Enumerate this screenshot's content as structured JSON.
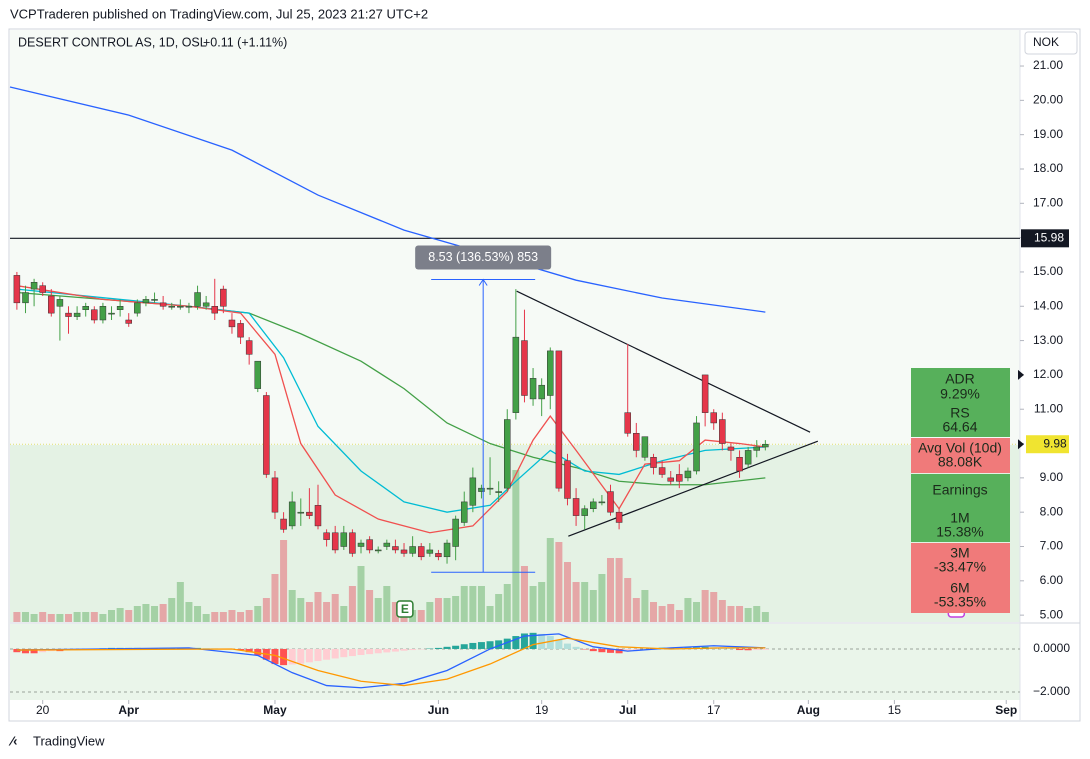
{
  "header": {
    "published": "VCPTraderen published on TradingView.com, Jul 25, 2023 21:27 UTC+2",
    "symbol": "DESERT CONTROL AS, 1D, OSL",
    "change": "+0.11 (+1.11%)",
    "currency": "NOK"
  },
  "footer": {
    "brand": "TradingView"
  },
  "stats": [
    {
      "label": "ADR",
      "value": "9.29%"
    },
    {
      "label": "RS",
      "value": "64.64"
    },
    {
      "label": "Avg Vol (10d)",
      "value": "88.08K"
    },
    {
      "label": "Earnings"
    },
    {
      "label": "1M",
      "value": "15.38%"
    },
    {
      "label": "3M",
      "value": "-33.47%"
    },
    {
      "label": "6M",
      "value": "-53.35%"
    }
  ],
  "chart_data": {
    "type": "candlestick",
    "up_color": "#43a047",
    "down_color": "#e5364a",
    "xlim": [
      -0.8,
      116.6
    ],
    "ylim": [
      4.8,
      22.05
    ],
    "xticks": [
      {
        "value": 3,
        "label": "20"
      },
      {
        "value": 13,
        "label": "Apr"
      },
      {
        "value": 30,
        "label": "May"
      },
      {
        "value": 49,
        "label": "Jun"
      },
      {
        "value": 61,
        "label": "19"
      },
      {
        "value": 71,
        "label": "Jul"
      },
      {
        "value": 81,
        "label": "17"
      },
      {
        "value": 92,
        "label": "Aug"
      },
      {
        "value": 102,
        "label": "15"
      },
      {
        "value": 115,
        "label": "Sep"
      }
    ],
    "yticks": [
      {
        "value": 5,
        "label": "5.00"
      },
      {
        "value": 6,
        "label": "6.00"
      },
      {
        "value": 7,
        "label": "7.00"
      },
      {
        "value": 8,
        "label": "8.00"
      },
      {
        "value": 9,
        "label": "9.00"
      },
      {
        "value": 10,
        "label": "10.00"
      },
      {
        "value": 11,
        "label": "11.00"
      },
      {
        "value": 12,
        "label": "12.00"
      },
      {
        "value": 13,
        "label": "13.00"
      },
      {
        "value": 14,
        "label": "14.00"
      },
      {
        "value": 15,
        "label": "15.00"
      },
      {
        "value": 16,
        "label": "16.00"
      },
      {
        "value": 17,
        "label": "17.00"
      },
      {
        "value": 18,
        "label": "18.00"
      },
      {
        "value": 19,
        "label": "19.00"
      },
      {
        "value": 20,
        "label": "20.00"
      },
      {
        "value": 21,
        "label": "21.00"
      }
    ],
    "x": [
      0,
      1,
      2,
      3,
      4,
      5,
      6,
      7,
      8,
      9,
      10,
      11,
      12,
      13,
      14,
      15,
      16,
      17,
      18,
      19,
      20,
      21,
      22,
      23,
      24,
      25,
      26,
      27,
      28,
      29,
      30,
      31,
      32,
      33,
      34,
      35,
      36,
      37,
      38,
      39,
      40,
      41,
      42,
      43,
      44,
      45,
      46,
      47,
      48,
      49,
      50,
      51,
      52,
      53,
      54,
      55,
      56,
      57,
      58,
      59,
      60,
      61,
      62,
      63,
      64,
      65,
      66,
      67,
      68,
      69,
      70,
      71,
      72,
      73,
      74,
      75,
      76,
      77,
      78,
      79,
      80,
      81,
      82,
      83,
      84,
      85,
      86,
      87
    ],
    "candles": [
      [
        14.9,
        15.0,
        13.9,
        14.1
      ],
      [
        14.1,
        14.6,
        13.8,
        14.4
      ],
      [
        14.5,
        14.8,
        14.0,
        14.7
      ],
      [
        14.6,
        14.7,
        14.3,
        14.4
      ],
      [
        14.3,
        14.5,
        13.7,
        13.8
      ],
      [
        14.0,
        14.3,
        13.0,
        14.2
      ],
      [
        13.8,
        14.0,
        13.2,
        13.7
      ],
      [
        13.7,
        14.0,
        13.6,
        13.8
      ],
      [
        13.9,
        14.1,
        13.7,
        14.0
      ],
      [
        13.9,
        14.0,
        13.5,
        13.6
      ],
      [
        13.6,
        14.1,
        13.5,
        14.0
      ],
      [
        13.8,
        14.0,
        13.6,
        13.8
      ],
      [
        13.9,
        14.2,
        13.7,
        14.0
      ],
      [
        13.6,
        13.8,
        13.4,
        13.5
      ],
      [
        13.8,
        14.2,
        13.7,
        14.1
      ],
      [
        14.1,
        14.3,
        14.0,
        14.2
      ],
      [
        14.2,
        14.4,
        14.1,
        14.2
      ],
      [
        14.1,
        14.3,
        13.9,
        14.0
      ],
      [
        14.0,
        14.1,
        13.9,
        14.0
      ],
      [
        14.0,
        14.2,
        13.9,
        14.0
      ],
      [
        14.0,
        14.1,
        13.8,
        14.0
      ],
      [
        14.0,
        14.6,
        13.9,
        14.4
      ],
      [
        14.0,
        14.3,
        13.9,
        14.1
      ],
      [
        14.0,
        14.8,
        13.6,
        13.8
      ],
      [
        14.5,
        14.6,
        13.8,
        14.0
      ],
      [
        13.6,
        13.8,
        13.2,
        13.4
      ],
      [
        13.5,
        13.6,
        12.9,
        13.1
      ],
      [
        13.0,
        13.1,
        12.3,
        12.6
      ],
      [
        11.6,
        12.4,
        11.5,
        12.4
      ],
      [
        11.4,
        11.5,
        9.0,
        9.1
      ],
      [
        9.0,
        9.2,
        7.8,
        8.0
      ],
      [
        7.8,
        8.0,
        7.4,
        7.5
      ],
      [
        7.6,
        8.6,
        7.5,
        8.3
      ],
      [
        8.0,
        8.4,
        7.6,
        8.0
      ],
      [
        8.0,
        8.7,
        7.8,
        7.9
      ],
      [
        8.2,
        8.8,
        7.5,
        7.6
      ],
      [
        7.4,
        7.5,
        7.0,
        7.2
      ],
      [
        7.4,
        7.6,
        6.8,
        6.9
      ],
      [
        7.0,
        7.6,
        6.9,
        7.4
      ],
      [
        7.4,
        7.5,
        6.7,
        6.8
      ],
      [
        7.0,
        7.2,
        6.8,
        7.1
      ],
      [
        7.2,
        7.3,
        6.8,
        6.9
      ],
      [
        6.9,
        7.0,
        6.8,
        6.9
      ],
      [
        7.0,
        7.2,
        6.9,
        7.1
      ],
      [
        7.0,
        7.2,
        6.8,
        6.9
      ],
      [
        6.9,
        7.1,
        6.7,
        6.8
      ],
      [
        6.8,
        7.3,
        6.7,
        7.0
      ],
      [
        7.0,
        7.1,
        6.6,
        6.7
      ],
      [
        6.8,
        7.1,
        6.7,
        6.9
      ],
      [
        6.8,
        6.9,
        6.6,
        6.7
      ],
      [
        6.7,
        7.2,
        6.5,
        7.1
      ],
      [
        7.0,
        7.9,
        6.6,
        7.8
      ],
      [
        7.7,
        8.6,
        7.6,
        8.3
      ],
      [
        8.2,
        9.3,
        8.0,
        9.0
      ],
      [
        8.6,
        8.8,
        8.4,
        8.7
      ],
      [
        8.7,
        9.6,
        8.5,
        8.7
      ],
      [
        8.6,
        8.9,
        8.3,
        8.6
      ],
      [
        8.7,
        11.0,
        8.6,
        10.7
      ],
      [
        10.9,
        14.5,
        10.7,
        13.1
      ],
      [
        13.0,
        13.9,
        11.2,
        11.4
      ],
      [
        11.3,
        12.2,
        11.1,
        11.9
      ],
      [
        11.3,
        11.9,
        10.8,
        11.7
      ],
      [
        11.4,
        12.8,
        11.0,
        12.7
      ],
      [
        12.7,
        12.7,
        8.6,
        8.7
      ],
      [
        9.5,
        9.7,
        8.2,
        8.4
      ],
      [
        8.4,
        8.7,
        7.6,
        7.9
      ],
      [
        7.9,
        8.2,
        7.5,
        8.1
      ],
      [
        8.1,
        8.4,
        8.0,
        8.3
      ],
      [
        8.3,
        8.5,
        8.2,
        8.3
      ],
      [
        8.6,
        8.8,
        7.9,
        8.0
      ],
      [
        8.0,
        8.1,
        7.5,
        7.7
      ],
      [
        10.9,
        12.9,
        10.2,
        10.3
      ],
      [
        10.3,
        10.6,
        9.6,
        9.8
      ],
      [
        9.6,
        10.2,
        9.5,
        10.2
      ],
      [
        9.6,
        9.7,
        9.1,
        9.3
      ],
      [
        9.3,
        9.5,
        9.0,
        9.1
      ],
      [
        9.0,
        9.2,
        8.8,
        8.9
      ],
      [
        9.1,
        9.4,
        8.7,
        8.9
      ],
      [
        9.0,
        9.3,
        8.9,
        9.2
      ],
      [
        9.2,
        10.8,
        9.1,
        10.6
      ],
      [
        12.0,
        12.0,
        10.5,
        10.9
      ],
      [
        10.9,
        11.0,
        10.4,
        10.6
      ],
      [
        10.7,
        10.9,
        9.8,
        10.0
      ],
      [
        9.9,
        10.0,
        9.5,
        9.8
      ],
      [
        9.6,
        9.8,
        9.0,
        9.2
      ],
      [
        9.4,
        9.9,
        9.3,
        9.8
      ],
      [
        9.8,
        10.1,
        9.6,
        9.9
      ],
      [
        9.9,
        10.1,
        9.8,
        9.98
      ]
    ],
    "moving_averages": [
      {
        "color": "#2962ff",
        "x": [
          -0.8,
          13,
          25,
          35,
          45,
          55,
          65,
          75,
          87
        ],
        "values": [
          20.39,
          19.57,
          18.55,
          17.24,
          16.22,
          15.5,
          14.76,
          14.24,
          13.83
        ]
      },
      {
        "color": "#43a047",
        "x": [
          0,
          10,
          20,
          27,
          33,
          40,
          45,
          50,
          55,
          60,
          65,
          70,
          75,
          80,
          87
        ],
        "values": [
          14.4,
          14.2,
          14.0,
          13.8,
          13.2,
          12.4,
          11.6,
          10.6,
          10.0,
          9.6,
          9.3,
          8.9,
          8.8,
          8.8,
          9.0
        ]
      },
      {
        "color": "#00bcd4",
        "x": [
          0,
          20,
          27,
          31,
          35,
          40,
          45,
          50,
          55,
          58,
          62,
          66,
          70,
          75,
          80,
          87
        ],
        "values": [
          14.5,
          14.0,
          13.8,
          12.5,
          10.5,
          9.2,
          8.3,
          8.0,
          8.2,
          8.9,
          9.8,
          9.2,
          9.1,
          9.5,
          9.8,
          9.9
        ]
      },
      {
        "color": "#f0504f",
        "x": [
          0,
          10,
          20,
          26,
          30,
          33,
          37,
          42,
          48,
          53,
          57,
          60,
          62,
          65,
          70,
          73,
          77,
          80,
          84,
          87
        ],
        "values": [
          14.6,
          14.2,
          14.0,
          13.8,
          12.6,
          10.0,
          8.5,
          7.8,
          7.4,
          7.6,
          8.6,
          10.1,
          10.8,
          9.8,
          8.1,
          9.4,
          9.5,
          10.1,
          10.0,
          9.9
        ]
      }
    ],
    "hline": 15.98,
    "last_price": 9.98,
    "trendlines": [
      {
        "x": [
          58.1,
          92.2
        ],
        "values": [
          14.44,
          10.33
        ]
      },
      {
        "x": [
          64.1,
          93.1
        ],
        "values": [
          7.3,
          10.07
        ]
      }
    ],
    "measurement": {
      "x": 54.2,
      "from": 6.25,
      "to": 14.78,
      "label": "8.53 (136.53%) 853"
    },
    "events": [
      {
        "x": 45.1,
        "label": "E"
      },
      {
        "x": 109.2,
        "label": "E"
      }
    ],
    "volume": {
      "vlim": [
        0,
        600
      ],
      "values": [
        25,
        25,
        20,
        25,
        20,
        20,
        20,
        25,
        25,
        25,
        20,
        30,
        35,
        30,
        40,
        45,
        40,
        45,
        60,
        100,
        50,
        40,
        20,
        25,
        25,
        30,
        25,
        30,
        40,
        60,
        120,
        205,
        80,
        60,
        50,
        75,
        50,
        70,
        40,
        90,
        140,
        80,
        60,
        90,
        50,
        40,
        30,
        30,
        50,
        60,
        60,
        65,
        90,
        90,
        90,
        40,
        70,
        95,
        380,
        140,
        90,
        100,
        210,
        200,
        150,
        100,
        100,
        80,
        120,
        160,
        160,
        110,
        60,
        80,
        50,
        40,
        45,
        30,
        60,
        50,
        80,
        75,
        55,
        40,
        40,
        35,
        40,
        25
      ]
    },
    "macd": {
      "ylim": [
        -2.37,
        1.16
      ],
      "yticks": [
        {
          "value": 0,
          "label": "0.0000"
        },
        {
          "value": -2,
          "label": "−2.000"
        }
      ],
      "hist": [
        -0.15,
        -0.2,
        -0.2,
        -0.15,
        -0.1,
        -0.1,
        -0.05,
        -0.05,
        0,
        0.02,
        0.03,
        0.05,
        0.05,
        0.05,
        0.05,
        0.04,
        0.04,
        0.05,
        0.06,
        0.06,
        0.05,
        0.05,
        0.04,
        0.03,
        0.02,
        0,
        -0.05,
        -0.15,
        -0.3,
        -0.5,
        -0.7,
        -0.75,
        -0.72,
        -0.68,
        -0.62,
        -0.56,
        -0.5,
        -0.44,
        -0.38,
        -0.33,
        -0.28,
        -0.24,
        -0.2,
        -0.16,
        -0.12,
        -0.08,
        -0.05,
        -0.02,
        0.02,
        0.05,
        0.1,
        0.15,
        0.22,
        0.28,
        0.32,
        0.36,
        0.4,
        0.48,
        0.6,
        0.72,
        0.75,
        0.7,
        0.6,
        0.42,
        0.25,
        0.1,
        -0.02,
        -0.1,
        -0.15,
        -0.18,
        -0.2,
        -0.12,
        -0.05,
        0,
        0.04,
        0.06,
        0.06,
        0.05,
        0.06,
        0.08,
        0.1,
        0.08,
        0.05,
        0.02,
        -0.05,
        -0.06,
        -0.05,
        -0.04
      ],
      "lines": [
        {
          "color": "#2962ff",
          "x": [
            0,
            20,
            28,
            32,
            36,
            40,
            45,
            50,
            55,
            59,
            63,
            67,
            71,
            76,
            81,
            87
          ],
          "values": [
            -0.05,
            0.05,
            -0.3,
            -1.1,
            -1.7,
            -1.8,
            -1.6,
            -1.0,
            0.0,
            0.6,
            0.7,
            0.1,
            -0.1,
            0.05,
            0.15,
            0.05
          ]
        },
        {
          "color": "#ff9800",
          "x": [
            0,
            25,
            30,
            35,
            40,
            45,
            50,
            55,
            60,
            64,
            70,
            76,
            82,
            87
          ],
          "values": [
            -0.05,
            0.0,
            -0.3,
            -1.0,
            -1.5,
            -1.7,
            -1.4,
            -0.7,
            0.2,
            0.5,
            0.1,
            0.0,
            0.05,
            0.05
          ]
        }
      ]
    }
  }
}
